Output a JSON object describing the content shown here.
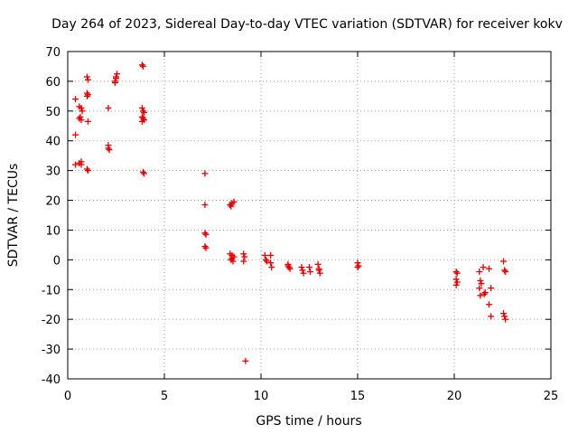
{
  "chart_data": {
    "type": "scatter",
    "title": "Day 264 of 2023, Sidereal Day-to-day VTEC variation (SDTVAR) for receiver kokv",
    "xlabel": "GPS time / hours",
    "ylabel": "SDTVAR / TECUs",
    "xlim": [
      0,
      25
    ],
    "ylim": [
      -40,
      70
    ],
    "xticks": [
      0,
      5,
      10,
      15,
      20,
      25
    ],
    "yticks": [
      -40,
      -30,
      -20,
      -10,
      0,
      10,
      20,
      30,
      40,
      50,
      60,
      70
    ],
    "grid": true,
    "marker": "+",
    "color": "#e00000",
    "series": [
      {
        "name": "SDTVAR",
        "points": [
          [
            0.4,
            54
          ],
          [
            0.4,
            42
          ],
          [
            0.4,
            32
          ],
          [
            0.6,
            32.5
          ],
          [
            0.7,
            33
          ],
          [
            0.7,
            32
          ],
          [
            0.6,
            51.5
          ],
          [
            0.7,
            51
          ],
          [
            0.75,
            50
          ],
          [
            0.65,
            48
          ],
          [
            0.7,
            47
          ],
          [
            0.6,
            47.5
          ],
          [
            1.0,
            61.5
          ],
          [
            1.05,
            60.5
          ],
          [
            1.0,
            56
          ],
          [
            1.05,
            55.5
          ],
          [
            1.0,
            55
          ],
          [
            1.05,
            46.5
          ],
          [
            1.0,
            30.5
          ],
          [
            1.05,
            30
          ],
          [
            2.1,
            51
          ],
          [
            2.1,
            38.5
          ],
          [
            2.1,
            37.5
          ],
          [
            2.15,
            37
          ],
          [
            2.45,
            60
          ],
          [
            2.5,
            61
          ],
          [
            2.45,
            59.5
          ],
          [
            2.55,
            62.5
          ],
          [
            2.5,
            61.5
          ],
          [
            3.85,
            65.5
          ],
          [
            3.9,
            65
          ],
          [
            3.85,
            51
          ],
          [
            3.9,
            50
          ],
          [
            3.95,
            49.5
          ],
          [
            3.85,
            48
          ],
          [
            3.9,
            47.5
          ],
          [
            3.95,
            47
          ],
          [
            3.85,
            46.5
          ],
          [
            3.9,
            29.5
          ],
          [
            3.95,
            29
          ],
          [
            7.1,
            29
          ],
          [
            7.1,
            18.5
          ],
          [
            7.1,
            9
          ],
          [
            7.15,
            8.5
          ],
          [
            7.1,
            4.5
          ],
          [
            7.15,
            4
          ],
          [
            8.4,
            18.5
          ],
          [
            8.5,
            19
          ],
          [
            8.6,
            19.5
          ],
          [
            8.45,
            18
          ],
          [
            8.4,
            2
          ],
          [
            8.5,
            1.5
          ],
          [
            8.6,
            1
          ],
          [
            8.45,
            0
          ],
          [
            8.55,
            -0.5
          ],
          [
            8.5,
            0.5
          ],
          [
            9.1,
            2
          ],
          [
            9.15,
            1
          ],
          [
            9.1,
            -0.5
          ],
          [
            9.2,
            -34
          ],
          [
            10.2,
            1.5
          ],
          [
            10.25,
            0
          ],
          [
            10.3,
            -0.5
          ],
          [
            10.5,
            1.5
          ],
          [
            10.5,
            -1
          ],
          [
            10.55,
            -2.5
          ],
          [
            11.4,
            -2
          ],
          [
            11.45,
            -2.5
          ],
          [
            11.5,
            -3
          ],
          [
            11.4,
            -1.5
          ],
          [
            12.1,
            -2.5
          ],
          [
            12.15,
            -3.5
          ],
          [
            12.2,
            -4.5
          ],
          [
            12.5,
            -2.5
          ],
          [
            12.55,
            -4
          ],
          [
            12.95,
            -1.5
          ],
          [
            13.0,
            -3
          ],
          [
            13.05,
            -4.5
          ],
          [
            13.0,
            -3.5
          ],
          [
            15.0,
            -1
          ],
          [
            15.05,
            -2
          ],
          [
            15.0,
            -2.5
          ],
          [
            20.1,
            -4
          ],
          [
            20.15,
            -4.5
          ],
          [
            20.1,
            -6.5
          ],
          [
            20.15,
            -7.5
          ],
          [
            20.1,
            -8.5
          ],
          [
            21.3,
            -4
          ],
          [
            21.35,
            -7
          ],
          [
            21.4,
            -8
          ],
          [
            21.3,
            -9.5
          ],
          [
            21.35,
            -12
          ],
          [
            21.5,
            -2.5
          ],
          [
            21.6,
            -11
          ],
          [
            21.55,
            -11.5
          ],
          [
            21.8,
            -3
          ],
          [
            21.9,
            -9.5
          ],
          [
            21.8,
            -15
          ],
          [
            21.9,
            -19
          ],
          [
            22.55,
            -0.5
          ],
          [
            22.6,
            -3.5
          ],
          [
            22.65,
            -4
          ],
          [
            22.55,
            -18
          ],
          [
            22.6,
            -19
          ],
          [
            22.65,
            -20
          ]
        ]
      }
    ]
  }
}
